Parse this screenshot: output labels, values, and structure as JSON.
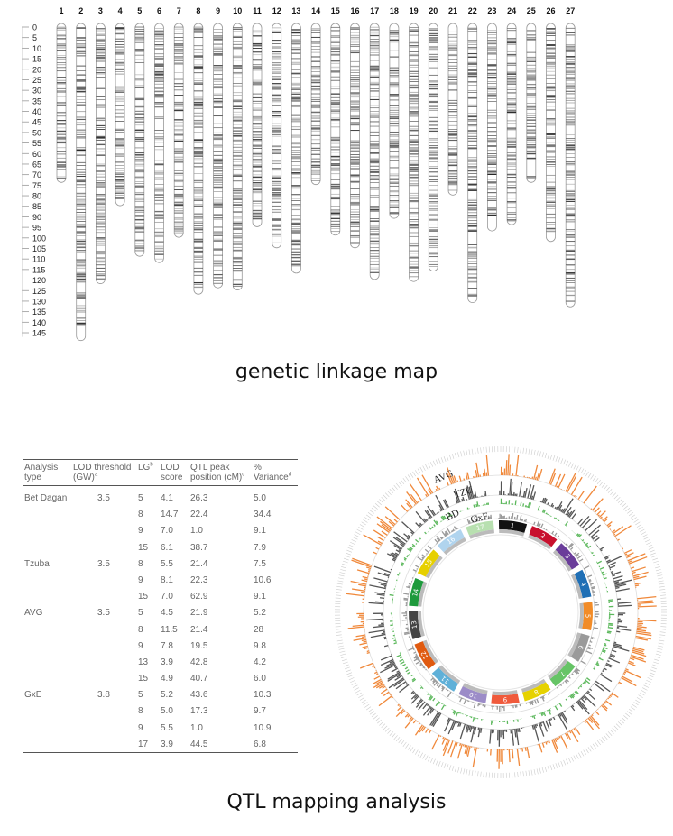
{
  "linkage_map": {
    "caption": "genetic linkage map",
    "axis_ticks": [
      0,
      5,
      10,
      15,
      20,
      25,
      30,
      35,
      40,
      45,
      50,
      55,
      60,
      65,
      70,
      75,
      80,
      85,
      90,
      95,
      100,
      105,
      110,
      115,
      120,
      125,
      130,
      135,
      140,
      145
    ],
    "chromosomes": [
      {
        "label": "1",
        "length": 72
      },
      {
        "label": "2",
        "length": 147
      },
      {
        "label": "3",
        "length": 120
      },
      {
        "label": "4",
        "length": 83
      },
      {
        "label": "5",
        "length": 107
      },
      {
        "label": "6",
        "length": 110
      },
      {
        "label": "7",
        "length": 98
      },
      {
        "label": "8",
        "length": 125
      },
      {
        "label": "9",
        "length": 122
      },
      {
        "label": "10",
        "length": 123
      },
      {
        "label": "11",
        "length": 93
      },
      {
        "label": "12",
        "length": 103
      },
      {
        "label": "13",
        "length": 115
      },
      {
        "label": "14",
        "length": 73
      },
      {
        "label": "15",
        "length": 97
      },
      {
        "label": "16",
        "length": 103
      },
      {
        "label": "17",
        "length": 118
      },
      {
        "label": "18",
        "length": 89
      },
      {
        "label": "19",
        "length": 119
      },
      {
        "label": "20",
        "length": 114
      },
      {
        "label": "21",
        "length": 78
      },
      {
        "label": "22",
        "length": 129
      },
      {
        "label": "23",
        "length": 95
      },
      {
        "label": "24",
        "length": 92
      },
      {
        "label": "25",
        "length": 72
      },
      {
        "label": "26",
        "length": 100
      },
      {
        "label": "27",
        "length": 131
      }
    ]
  },
  "qtl": {
    "caption": "QTL mapping analysis",
    "table": {
      "headers": [
        {
          "text": "Analysis type",
          "sup": ""
        },
        {
          "text": "LOD threshold (GW)",
          "sup": "a"
        },
        {
          "text": "LG",
          "sup": "b"
        },
        {
          "text": "LOD score",
          "sup": ""
        },
        {
          "text": "QTL peak position (cM)",
          "sup": "c"
        },
        {
          "text": "% Variance",
          "sup": "d"
        }
      ],
      "rows": [
        [
          "Bet Dagan",
          "3.5",
          "5",
          "4.1",
          "26.3",
          "5.0"
        ],
        [
          "",
          "",
          "8",
          "14.7",
          "22.4",
          "34.4"
        ],
        [
          "",
          "",
          "9",
          "7.0",
          "1.0",
          "9.1"
        ],
        [
          "",
          "",
          "15",
          "6.1",
          "38.7",
          "7.9"
        ],
        [
          "Tzuba",
          "3.5",
          "8",
          "5.5",
          "21.4",
          "7.5"
        ],
        [
          "",
          "",
          "9",
          "8.1",
          "22.3",
          "10.6"
        ],
        [
          "",
          "",
          "15",
          "7.0",
          "62.9",
          "9.1"
        ],
        [
          "AVG",
          "3.5",
          "5",
          "4.5",
          "21.9",
          "5.2"
        ],
        [
          "",
          "",
          "8",
          "11.5",
          "21.4",
          "28"
        ],
        [
          "",
          "",
          "9",
          "7.8",
          "19.5",
          "9.8"
        ],
        [
          "",
          "",
          "13",
          "3.9",
          "42.8",
          "4.2"
        ],
        [
          "",
          "",
          "15",
          "4.9",
          "40.7",
          "6.0"
        ],
        [
          "GxE",
          "3.8",
          "5",
          "5.2",
          "43.6",
          "10.3"
        ],
        [
          "",
          "",
          "8",
          "5.0",
          "17.3",
          "9.7"
        ],
        [
          "",
          "",
          "9",
          "5.5",
          "1.0",
          "10.9"
        ],
        [
          "",
          "",
          "17",
          "3.9",
          "44.5",
          "6.8"
        ]
      ]
    },
    "circos": {
      "tracks": [
        {
          "label": "AVG",
          "color": "#f0883a"
        },
        {
          "label": "TZU",
          "color": "#555555"
        },
        {
          "label": "BD",
          "color": "#5cb85c"
        },
        {
          "label": "GxE",
          "color": "#999999"
        }
      ],
      "segments": [
        {
          "label": "1",
          "color": "#111111"
        },
        {
          "label": "2",
          "color": "#c8102e"
        },
        {
          "label": "3",
          "color": "#6a3d9a"
        },
        {
          "label": "4",
          "color": "#1f6fb5"
        },
        {
          "label": "5",
          "color": "#f28c28"
        },
        {
          "label": "6",
          "color": "#9a9a9a"
        },
        {
          "label": "7",
          "color": "#66c466"
        },
        {
          "label": "8",
          "color": "#e6d200"
        },
        {
          "label": "9",
          "color": "#f05a3c"
        },
        {
          "label": "10",
          "color": "#9c8cc8"
        },
        {
          "label": "11",
          "color": "#5fb0d8"
        },
        {
          "label": "12",
          "color": "#e05a10"
        },
        {
          "label": "13",
          "color": "#444444"
        },
        {
          "label": "14",
          "color": "#1e9a3c"
        },
        {
          "label": "15",
          "color": "#e6d000"
        },
        {
          "label": "16",
          "color": "#b0d4ee"
        },
        {
          "label": "17",
          "color": "#b8e0b0"
        }
      ]
    }
  }
}
